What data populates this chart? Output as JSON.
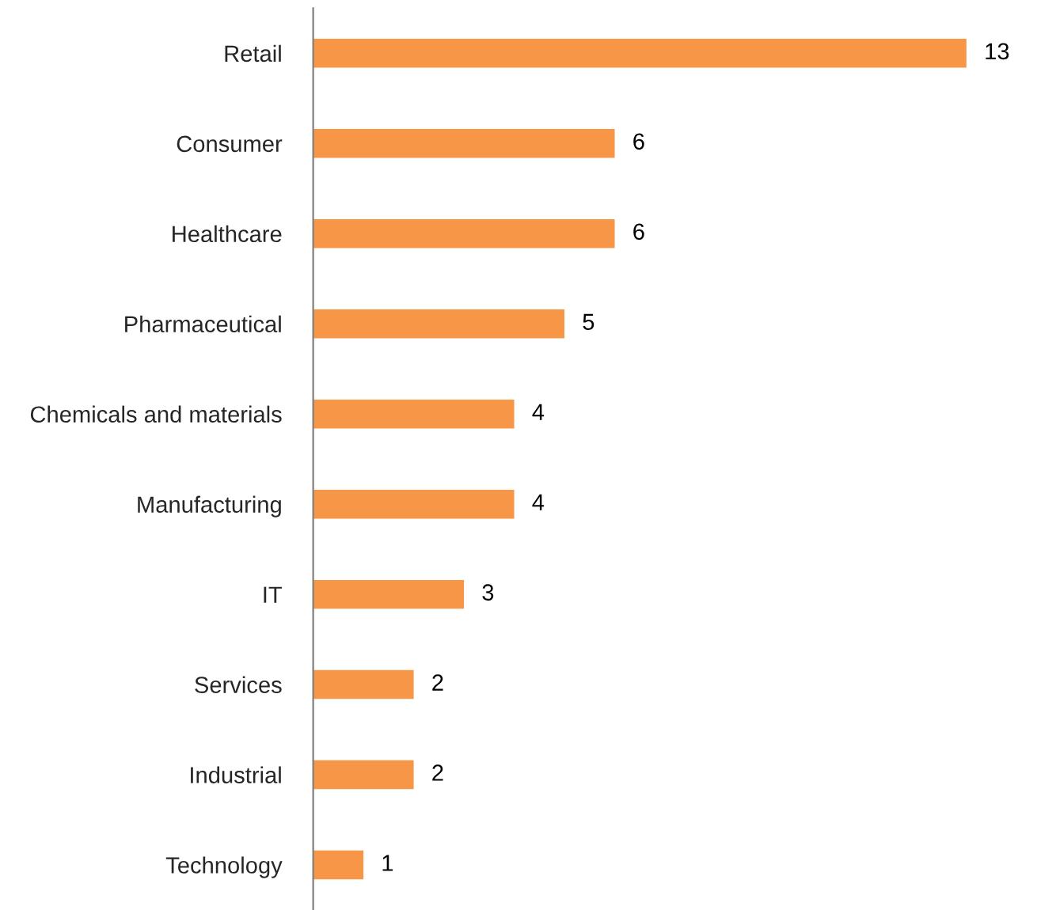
{
  "chart_data": {
    "type": "bar",
    "orientation": "horizontal",
    "categories": [
      "Retail",
      "Consumer",
      "Healthcare",
      "Pharmaceutical",
      "Chemicals and materials",
      "Manufacturing",
      "IT",
      "Services",
      "Industrial",
      "Technology"
    ],
    "values": [
      13,
      6,
      6,
      5,
      4,
      4,
      3,
      2,
      2,
      1
    ],
    "color": "#f79646",
    "data_labels": true,
    "grid": false,
    "legend": false
  }
}
